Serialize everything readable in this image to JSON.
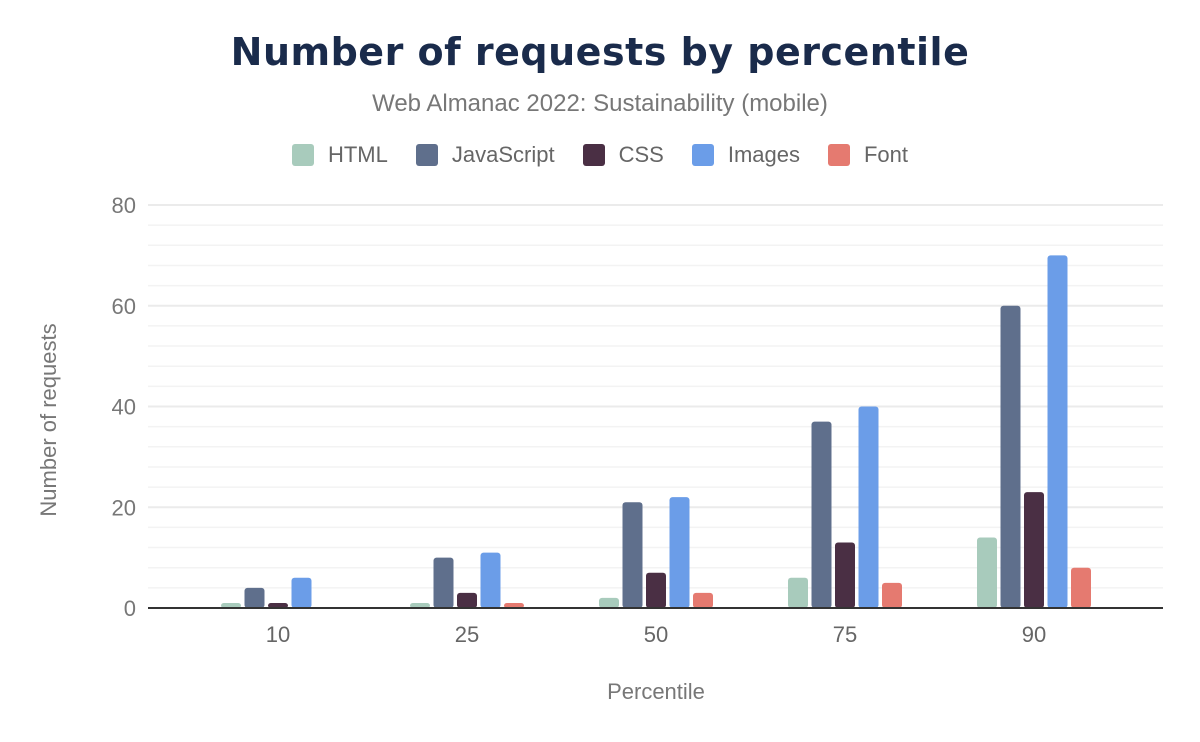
{
  "chart_data": {
    "type": "bar",
    "title": "Number of requests by percentile",
    "subtitle": "Web Almanac 2022: Sustainability (mobile)",
    "xlabel": "Percentile",
    "ylabel": "Number of requests",
    "categories": [
      "10",
      "25",
      "50",
      "75",
      "90"
    ],
    "ylim": [
      0,
      80
    ],
    "yticks": [
      "0",
      "20",
      "40",
      "60",
      "80"
    ],
    "grid": true,
    "legend": "top",
    "series": [
      {
        "name": "HTML",
        "color": "#a8cbbc",
        "values": [
          1,
          1,
          2,
          6,
          14
        ]
      },
      {
        "name": "JavaScript",
        "color": "#5f6f8c",
        "values": [
          4,
          10,
          21,
          37,
          60
        ]
      },
      {
        "name": "CSS",
        "color": "#4a2f44",
        "values": [
          1,
          3,
          7,
          13,
          23
        ]
      },
      {
        "name": "Images",
        "color": "#6b9de8",
        "values": [
          6,
          11,
          22,
          40,
          70
        ]
      },
      {
        "name": "Font",
        "color": "#e57a70",
        "values": [
          0,
          1,
          3,
          5,
          8
        ]
      }
    ]
  }
}
